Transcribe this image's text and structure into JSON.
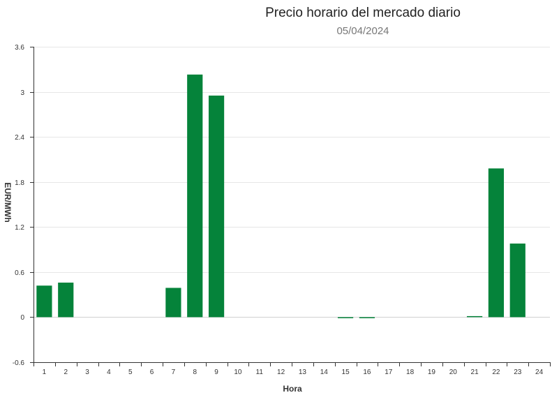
{
  "chart_data": {
    "type": "bar",
    "title": "Precio horario del mercado diario",
    "subtitle": "05/04/2024",
    "xlabel": "Hora",
    "ylabel": "EUR/MWh",
    "categories": [
      "1",
      "2",
      "3",
      "4",
      "5",
      "6",
      "7",
      "8",
      "9",
      "10",
      "11",
      "12",
      "13",
      "14",
      "15",
      "16",
      "17",
      "18",
      "19",
      "20",
      "21",
      "22",
      "23",
      "24"
    ],
    "values": [
      0.42,
      0.46,
      0,
      0,
      0,
      0,
      0.39,
      3.23,
      2.95,
      0,
      0,
      0,
      0,
      0,
      -0.01,
      -0.01,
      0,
      0,
      0,
      0,
      0.01,
      1.98,
      0.98,
      null
    ],
    "yticks": [
      "3.6",
      "3",
      "2.4",
      "1.8",
      "1.2",
      "0.6",
      "0",
      "-0.6"
    ],
    "ylim": [
      -0.6,
      3.6
    ],
    "grid": true,
    "bar_color": "#05833a",
    "grid_color": "#e6e6e6",
    "axis_color": "#333333"
  }
}
